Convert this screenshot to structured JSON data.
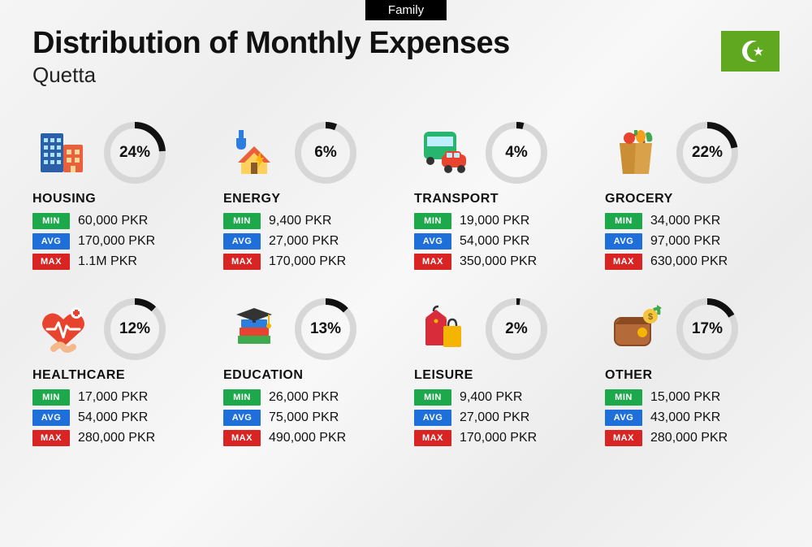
{
  "tag": "Family",
  "title": "Distribution of Monthly Expenses",
  "subtitle": "Quetta",
  "flag": {
    "bg": "#5fa81f",
    "symbol_color": "#ffffff"
  },
  "ring": {
    "size": 76,
    "stroke_width": 8,
    "track_color": "#d7d7d7",
    "fill_color": "#111111",
    "start_angle_deg": -90
  },
  "badges": {
    "min": {
      "label": "MIN",
      "color": "#1da84c"
    },
    "avg": {
      "label": "AVG",
      "color": "#1e6fd9"
    },
    "max": {
      "label": "MAX",
      "color": "#d92424"
    }
  },
  "currency": "PKR",
  "categories": [
    {
      "name": "HOUSING",
      "percent": 24,
      "min": "60,000 PKR",
      "avg": "170,000 PKR",
      "max": "1.1M PKR",
      "icon": "housing-icon"
    },
    {
      "name": "ENERGY",
      "percent": 6,
      "min": "9,400 PKR",
      "avg": "27,000 PKR",
      "max": "170,000 PKR",
      "icon": "energy-icon"
    },
    {
      "name": "TRANSPORT",
      "percent": 4,
      "min": "19,000 PKR",
      "avg": "54,000 PKR",
      "max": "350,000 PKR",
      "icon": "transport-icon"
    },
    {
      "name": "GROCERY",
      "percent": 22,
      "min": "34,000 PKR",
      "avg": "97,000 PKR",
      "max": "630,000 PKR",
      "icon": "grocery-icon"
    },
    {
      "name": "HEALTHCARE",
      "percent": 12,
      "min": "17,000 PKR",
      "avg": "54,000 PKR",
      "max": "280,000 PKR",
      "icon": "healthcare-icon"
    },
    {
      "name": "EDUCATION",
      "percent": 13,
      "min": "26,000 PKR",
      "avg": "75,000 PKR",
      "max": "490,000 PKR",
      "icon": "education-icon"
    },
    {
      "name": "LEISURE",
      "percent": 2,
      "min": "9,400 PKR",
      "avg": "27,000 PKR",
      "max": "170,000 PKR",
      "icon": "leisure-icon"
    },
    {
      "name": "OTHER",
      "percent": 17,
      "min": "15,000 PKR",
      "avg": "43,000 PKR",
      "max": "280,000 PKR",
      "icon": "other-icon"
    }
  ]
}
